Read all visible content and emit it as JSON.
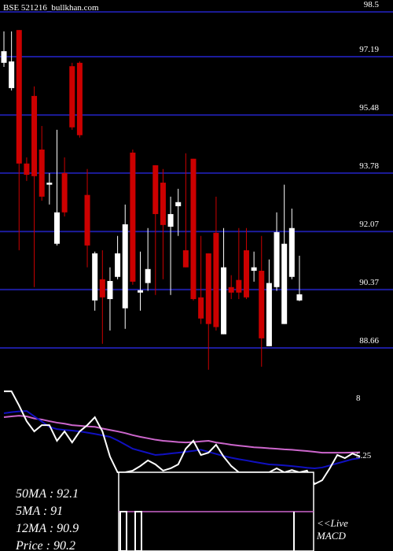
{
  "chart_data": [
    {
      "type": "candlestick",
      "title": "BSE 521216_bullkhan.com",
      "open": [
        97.01,
        96.27,
        97.97,
        94.06,
        96.04,
        94.47,
        93.44,
        91.71,
        93.78,
        96.91,
        97.01,
        93.14,
        90.05,
        90.67,
        90.09,
        90.74,
        89.82,
        94.38,
        90.28,
        90.56,
        94.01,
        93.5,
        92.21,
        92.81,
        91.52,
        94.2,
        90.14,
        91.43,
        92.03,
        89.06,
        90.44,
        90.65,
        91.52,
        90.92,
        90.92,
        88.71,
        90.44,
        89.36,
        90.74,
        90.05
      ],
      "high": [
        97.93,
        97.93,
        97.97,
        94.24,
        96.32,
        95.16,
        93.78,
        95.05,
        94.24,
        97.01,
        97.05,
        93.9,
        91.48,
        91.52,
        91.02,
        91.94,
        92.86,
        94.47,
        91.48,
        92.17,
        94.01,
        93.9,
        93.09,
        93.32,
        94.36,
        94.2,
        91.94,
        91.43,
        93.09,
        92.17,
        90.79,
        92.17,
        92.17,
        91.48,
        91.94,
        91.25,
        92.63,
        93.44,
        92.74,
        91.36
      ],
      "low": [
        96.89,
        96.2,
        91.52,
        93.55,
        90.44,
        92.97,
        92.86,
        91.66,
        92.51,
        95.05,
        94.82,
        91.02,
        89.75,
        88.78,
        89.17,
        90.67,
        89.22,
        90.51,
        89.75,
        90.33,
        90.21,
        90.67,
        90.21,
        91.94,
        91.02,
        90.05,
        89.36,
        88.02,
        89.17,
        89.06,
        90.09,
        90.09,
        90.09,
        90.6,
        88.11,
        88.71,
        90.33,
        89.36,
        90.67,
        90.03
      ],
      "close": [
        97.35,
        97.05,
        94.06,
        93.73,
        93.69,
        93.09,
        93.5,
        92.63,
        92.63,
        95.12,
        94.89,
        91.66,
        91.43,
        90.14,
        90.62,
        91.43,
        92.28,
        90.6,
        90.35,
        90.97,
        92.58,
        92.26,
        92.58,
        92.93,
        91.02,
        90.09,
        89.52,
        89.36,
        89.27,
        91.02,
        90.28,
        90.28,
        90.14,
        91.02,
        88.94,
        90.56,
        92.05,
        91.71,
        92.17,
        90.23
      ],
      "up_color": "#ffffff",
      "down_color": "#cc0000",
      "ylim": [
        87.53,
        98.85
      ],
      "yticks": [
        98.5,
        97.19,
        95.48,
        93.78,
        92.07,
        90.37,
        88.66
      ],
      "grid": true,
      "grid_color": "#1c1c9c"
    },
    {
      "type": "line",
      "series": [
        {
          "color": "#cc66cc",
          "values": [
            7.06,
            7.1,
            7.13,
            7.1,
            7.0,
            6.95,
            6.87,
            6.8,
            6.75,
            6.68,
            6.65,
            6.62,
            6.6,
            6.52,
            6.45,
            6.38,
            6.3,
            6.2,
            6.12,
            6.05,
            5.98,
            5.93,
            5.9,
            5.87,
            5.85,
            5.87,
            5.9,
            5.93,
            5.85,
            5.8,
            5.74,
            5.7,
            5.66,
            5.62,
            5.6,
            5.57,
            5.55,
            5.52,
            5.5,
            5.47,
            5.44,
            5.4,
            5.36,
            5.36,
            5.36,
            5.36,
            5.37,
            5.38
          ]
        },
        {
          "color": "#1010c0",
          "values": [
            7.25,
            7.3,
            7.34,
            7.36,
            7.1,
            6.85,
            6.6,
            6.49,
            6.45,
            6.42,
            6.38,
            6.32,
            6.26,
            6.19,
            6.12,
            5.95,
            5.75,
            5.55,
            5.45,
            5.35,
            5.25,
            5.28,
            5.32,
            5.36,
            5.4,
            5.45,
            5.5,
            5.4,
            5.3,
            5.2,
            5.12,
            5.05,
            4.99,
            4.92,
            4.86,
            4.8,
            4.78,
            4.75,
            4.72,
            4.68,
            4.64,
            4.61,
            4.65,
            4.75,
            4.85,
            4.95,
            5.05,
            5.1
          ]
        },
        {
          "color": "#ffffff",
          "values": [
            8.3,
            8.3,
            7.62,
            6.87,
            6.38,
            6.68,
            6.68,
            5.93,
            6.38,
            5.85,
            6.38,
            6.68,
            7.06,
            6.38,
            5.17,
            4.42,
            4.42,
            4.5,
            4.72,
            4.99,
            4.8,
            4.5,
            4.61,
            4.8,
            5.55,
            5.93,
            5.25,
            5.36,
            5.74,
            5.17,
            4.72,
            4.42,
            4.42,
            4.42,
            4.42,
            4.42,
            4.61,
            4.42,
            4.53,
            4.42,
            4.5,
            3.86,
            4.04,
            4.61,
            5.25,
            5.1,
            5.32,
            5.17
          ]
        }
      ],
      "ylim": [
        0.65,
        8.57
      ],
      "yticks": [
        8,
        5.25
      ],
      "annotations": [
        "50MA : 92.1",
        "5MA : 91",
        "12MA : 90.9",
        "Price : 90.2"
      ],
      "indicator_label": [
        "<<Live",
        "MACD"
      ]
    }
  ]
}
